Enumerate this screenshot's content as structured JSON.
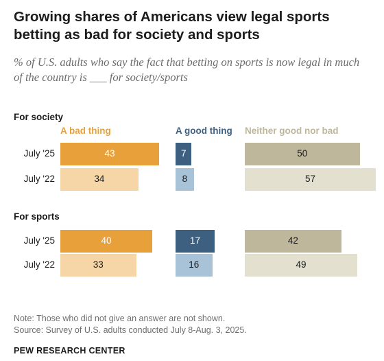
{
  "title": "Growing shares of Americans view legal sports betting as bad for society and sports",
  "subtitle": "% of U.S. adults who say the fact that betting on sports is now legal in much of the country is ___ for society/sports",
  "chart_data": {
    "type": "bar",
    "orientation": "horizontal",
    "categories": [
      "A bad thing",
      "A good thing",
      "Neither good nor bad"
    ],
    "colors": {
      "A bad thing": {
        "July '25": "#e8a13a",
        "July '22": "#f6d6a6"
      },
      "A good thing": {
        "July '25": "#3e6080",
        "July '22": "#a8c3d8"
      },
      "Neither good nor bad": {
        "July '25": "#bfb79b",
        "July '22": "#e3e0d0"
      }
    },
    "header_colors": {
      "A bad thing": "#e8a13a",
      "A good thing": "#3e6080",
      "Neither good nor bad": "#bfb79b"
    },
    "value_text_colors": {
      "A bad thing": {
        "July '25": "#ffffff",
        "July '22": "#1a1a1a"
      },
      "A good thing": {
        "July '25": "#ffffff",
        "July '22": "#1a1a1a"
      },
      "Neither good nor bad": {
        "July '25": "#1a1a1a",
        "July '22": "#1a1a1a"
      }
    },
    "groups": [
      {
        "label": "For society",
        "rows": [
          {
            "label": "July '25",
            "values": [
              43,
              7,
              50
            ]
          },
          {
            "label": "July '22",
            "values": [
              34,
              8,
              57
            ]
          }
        ]
      },
      {
        "label": "For sports",
        "rows": [
          {
            "label": "July '25",
            "values": [
              40,
              17,
              42
            ]
          },
          {
            "label": "July '22",
            "values": [
              33,
              16,
              49
            ]
          }
        ]
      }
    ]
  },
  "notes": [
    "Note: Those who did not give an answer are not shown.",
    "Source: Survey of U.S. adults conducted July 8-Aug. 3, 2025."
  ],
  "brand": "PEW RESEARCH CENTER"
}
